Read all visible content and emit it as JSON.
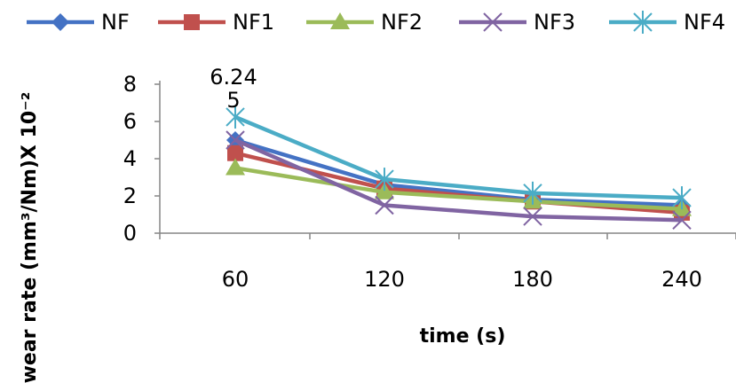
{
  "chart_data": {
    "type": "line",
    "title": "",
    "xlabel": "time (s)",
    "ylabel": "wear rate (mm³/Nm)X 10⁻²",
    "categories": [
      "60",
      "120",
      "180",
      "240"
    ],
    "ylim": [
      0,
      8
    ],
    "yticks": [
      "0",
      "2",
      "4",
      "6",
      "8"
    ],
    "grid": false,
    "legend_position": "top",
    "series": [
      {
        "name": "NF",
        "values": [
          5.0,
          2.6,
          1.8,
          1.5
        ],
        "color": "#4472C4",
        "marker": "diamond"
      },
      {
        "name": "NF1",
        "values": [
          4.3,
          2.4,
          1.7,
          1.1
        ],
        "color": "#C0504D",
        "marker": "square"
      },
      {
        "name": "NF2",
        "values": [
          3.5,
          2.2,
          1.7,
          1.3
        ],
        "color": "#9BBB59",
        "marker": "triangle"
      },
      {
        "name": "NF3",
        "values": [
          5.0,
          1.5,
          0.9,
          0.7
        ],
        "color": "#8064A2",
        "marker": "x"
      },
      {
        "name": "NF4",
        "values": [
          6.24,
          2.9,
          2.15,
          1.9
        ],
        "color": "#4BACC6",
        "marker": "star"
      }
    ],
    "annotations": [
      "6.24",
      "5"
    ]
  }
}
